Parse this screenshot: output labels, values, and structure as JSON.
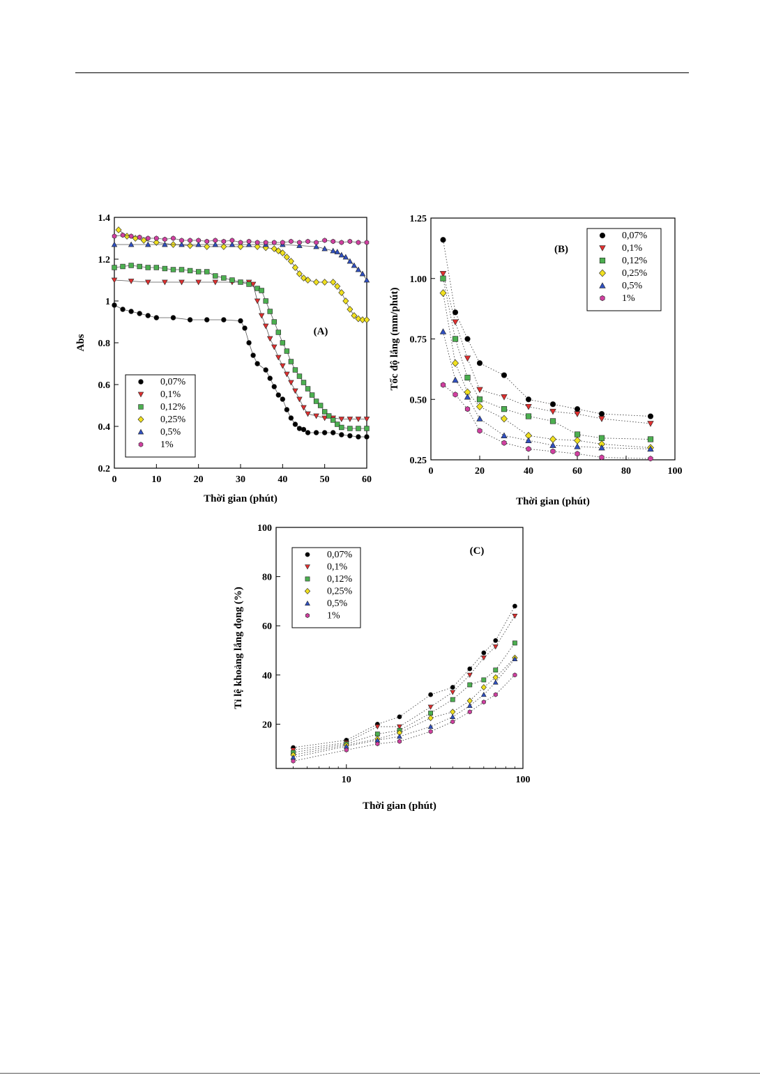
{
  "colors": {
    "s007": "#000000",
    "s01": "#e03030",
    "s012": "#4caf50",
    "s025": "#f0e020",
    "s05": "#3050c0",
    "s1": "#d040a0"
  },
  "chart_data": [
    {
      "type": "scatter",
      "panel_label": "(A)",
      "xlabel": "Thời gian (phút)",
      "ylabel": "Abs",
      "xlim": [
        0,
        60
      ],
      "ylim": [
        0.2,
        1.4
      ],
      "x_ticks": [
        0,
        10,
        20,
        30,
        40,
        50,
        60
      ],
      "y_ticks": [
        0.2,
        0.4,
        0.6,
        0.8,
        1.0,
        1.2,
        1.4
      ],
      "legend_position": "bottom-left",
      "grid": false,
      "series": [
        {
          "name": "0,07%",
          "marker": "circle",
          "color": "#000000",
          "points": [
            [
              0,
              0.98
            ],
            [
              2,
              0.96
            ],
            [
              4,
              0.95
            ],
            [
              6,
              0.94
            ],
            [
              8,
              0.93
            ],
            [
              10,
              0.92
            ],
            [
              14,
              0.92
            ],
            [
              18,
              0.91
            ],
            [
              22,
              0.91
            ],
            [
              26,
              0.91
            ],
            [
              30,
              0.905
            ],
            [
              31,
              0.87
            ],
            [
              32,
              0.8
            ],
            [
              33,
              0.74
            ],
            [
              34,
              0.7
            ],
            [
              36,
              0.67
            ],
            [
              37,
              0.63
            ],
            [
              38,
              0.59
            ],
            [
              39,
              0.55
            ],
            [
              40,
              0.53
            ],
            [
              41,
              0.48
            ],
            [
              42,
              0.44
            ],
            [
              43,
              0.41
            ],
            [
              44,
              0.39
            ],
            [
              45,
              0.385
            ],
            [
              46,
              0.37
            ],
            [
              48,
              0.37
            ],
            [
              50,
              0.37
            ],
            [
              52,
              0.37
            ],
            [
              54,
              0.36
            ],
            [
              56,
              0.355
            ],
            [
              58,
              0.35
            ],
            [
              60,
              0.35
            ]
          ]
        },
        {
          "name": "0,1%",
          "marker": "triangle-down",
          "color": "#e03030",
          "points": [
            [
              0,
              1.1
            ],
            [
              4,
              1.095
            ],
            [
              8,
              1.09
            ],
            [
              12,
              1.09
            ],
            [
              16,
              1.09
            ],
            [
              20,
              1.09
            ],
            [
              24,
              1.09
            ],
            [
              28,
              1.09
            ],
            [
              32,
              1.09
            ],
            [
              33,
              1.08
            ],
            [
              34,
              1.0
            ],
            [
              35,
              0.93
            ],
            [
              36,
              0.88
            ],
            [
              37,
              0.82
            ],
            [
              38,
              0.78
            ],
            [
              39,
              0.73
            ],
            [
              40,
              0.69
            ],
            [
              41,
              0.65
            ],
            [
              42,
              0.61
            ],
            [
              43,
              0.57
            ],
            [
              44,
              0.53
            ],
            [
              45,
              0.49
            ],
            [
              46,
              0.46
            ],
            [
              48,
              0.45
            ],
            [
              50,
              0.44
            ],
            [
              52,
              0.44
            ],
            [
              54,
              0.435
            ],
            [
              56,
              0.435
            ],
            [
              58,
              0.435
            ],
            [
              60,
              0.435
            ]
          ]
        },
        {
          "name": "0,12%",
          "marker": "square",
          "color": "#4caf50",
          "points": [
            [
              0,
              1.16
            ],
            [
              2,
              1.165
            ],
            [
              4,
              1.17
            ],
            [
              6,
              1.165
            ],
            [
              8,
              1.16
            ],
            [
              10,
              1.16
            ],
            [
              12,
              1.155
            ],
            [
              14,
              1.15
            ],
            [
              16,
              1.15
            ],
            [
              18,
              1.145
            ],
            [
              20,
              1.14
            ],
            [
              22,
              1.14
            ],
            [
              24,
              1.12
            ],
            [
              26,
              1.11
            ],
            [
              28,
              1.1
            ],
            [
              30,
              1.09
            ],
            [
              32,
              1.08
            ],
            [
              34,
              1.06
            ],
            [
              35,
              1.05
            ],
            [
              36,
              1.0
            ],
            [
              37,
              0.95
            ],
            [
              38,
              0.9
            ],
            [
              39,
              0.85
            ],
            [
              40,
              0.8
            ],
            [
              41,
              0.76
            ],
            [
              42,
              0.71
            ],
            [
              43,
              0.67
            ],
            [
              44,
              0.64
            ],
            [
              45,
              0.61
            ],
            [
              46,
              0.58
            ],
            [
              47,
              0.55
            ],
            [
              48,
              0.52
            ],
            [
              49,
              0.5
            ],
            [
              50,
              0.47
            ],
            [
              51,
              0.45
            ],
            [
              52,
              0.43
            ],
            [
              53,
              0.41
            ],
            [
              54,
              0.395
            ],
            [
              56,
              0.39
            ],
            [
              58,
              0.39
            ],
            [
              60,
              0.39
            ]
          ]
        },
        {
          "name": "0,25%",
          "marker": "diamond",
          "color": "#f0e020",
          "points": [
            [
              1,
              1.34
            ],
            [
              3,
              1.31
            ],
            [
              5,
              1.3
            ],
            [
              7,
              1.29
            ],
            [
              10,
              1.28
            ],
            [
              14,
              1.27
            ],
            [
              18,
              1.265
            ],
            [
              22,
              1.26
            ],
            [
              26,
              1.26
            ],
            [
              30,
              1.26
            ],
            [
              34,
              1.26
            ],
            [
              36,
              1.255
            ],
            [
              38,
              1.25
            ],
            [
              39,
              1.24
            ],
            [
              40,
              1.23
            ],
            [
              41,
              1.21
            ],
            [
              42,
              1.19
            ],
            [
              43,
              1.16
            ],
            [
              44,
              1.13
            ],
            [
              45,
              1.11
            ],
            [
              46,
              1.1
            ],
            [
              48,
              1.09
            ],
            [
              50,
              1.09
            ],
            [
              52,
              1.09
            ],
            [
              53,
              1.07
            ],
            [
              54,
              1.04
            ],
            [
              55,
              1.0
            ],
            [
              56,
              0.96
            ],
            [
              57,
              0.93
            ],
            [
              58,
              0.915
            ],
            [
              59,
              0.91
            ],
            [
              60,
              0.91
            ]
          ]
        },
        {
          "name": "0,5%",
          "marker": "triangle-up",
          "color": "#3050c0",
          "points": [
            [
              0,
              1.27
            ],
            [
              4,
              1.27
            ],
            [
              8,
              1.27
            ],
            [
              12,
              1.27
            ],
            [
              16,
              1.27
            ],
            [
              20,
              1.27
            ],
            [
              24,
              1.27
            ],
            [
              28,
              1.27
            ],
            [
              32,
              1.27
            ],
            [
              36,
              1.27
            ],
            [
              40,
              1.27
            ],
            [
              44,
              1.265
            ],
            [
              48,
              1.26
            ],
            [
              50,
              1.25
            ],
            [
              52,
              1.24
            ],
            [
              53,
              1.235
            ],
            [
              54,
              1.22
            ],
            [
              55,
              1.21
            ],
            [
              56,
              1.19
            ],
            [
              57,
              1.17
            ],
            [
              58,
              1.15
            ],
            [
              59,
              1.13
            ],
            [
              60,
              1.1
            ]
          ]
        },
        {
          "name": "1%",
          "marker": "hexagon",
          "color": "#d040a0",
          "points": [
            [
              0,
              1.31
            ],
            [
              2,
              1.315
            ],
            [
              4,
              1.31
            ],
            [
              6,
              1.305
            ],
            [
              8,
              1.3
            ],
            [
              10,
              1.3
            ],
            [
              12,
              1.295
            ],
            [
              14,
              1.3
            ],
            [
              16,
              1.29
            ],
            [
              18,
              1.29
            ],
            [
              20,
              1.29
            ],
            [
              22,
              1.285
            ],
            [
              24,
              1.29
            ],
            [
              26,
              1.285
            ],
            [
              28,
              1.29
            ],
            [
              30,
              1.28
            ],
            [
              32,
              1.285
            ],
            [
              34,
              1.28
            ],
            [
              36,
              1.28
            ],
            [
              38,
              1.28
            ],
            [
              40,
              1.28
            ],
            [
              42,
              1.285
            ],
            [
              44,
              1.28
            ],
            [
              46,
              1.285
            ],
            [
              48,
              1.28
            ],
            [
              50,
              1.29
            ],
            [
              52,
              1.285
            ],
            [
              54,
              1.28
            ],
            [
              56,
              1.285
            ],
            [
              58,
              1.28
            ],
            [
              60,
              1.28
            ]
          ]
        }
      ]
    },
    {
      "type": "line",
      "panel_label": "(B)",
      "xlabel": "Thời gian (phút)",
      "ylabel": "Tốc độ lắng (mm/phút)",
      "xlim": [
        0,
        100
      ],
      "ylim": [
        0.25,
        1.25
      ],
      "x_ticks": [
        0,
        20,
        40,
        60,
        80,
        100
      ],
      "y_ticks": [
        "0.25",
        "0.50",
        "0.75",
        "1.00",
        "1.25"
      ],
      "x": [
        5,
        10,
        15,
        20,
        30,
        40,
        50,
        60,
        70,
        90
      ],
      "legend_position": "top-right",
      "grid": false,
      "series": [
        {
          "name": "0,07%",
          "marker": "circle",
          "color": "#000000",
          "values": [
            1.16,
            0.86,
            0.75,
            0.65,
            0.6,
            0.5,
            0.48,
            0.46,
            0.44,
            0.43
          ]
        },
        {
          "name": "0,1%",
          "marker": "triangle-down",
          "color": "#e03030",
          "values": [
            1.02,
            0.82,
            0.67,
            0.54,
            0.51,
            0.47,
            0.45,
            0.44,
            0.42,
            0.4
          ]
        },
        {
          "name": "0,12%",
          "marker": "square",
          "color": "#4caf50",
          "values": [
            1.0,
            0.75,
            0.59,
            0.5,
            0.46,
            0.43,
            0.41,
            0.355,
            0.34,
            0.335
          ]
        },
        {
          "name": "0,25%",
          "marker": "diamond",
          "color": "#f0e020",
          "values": [
            0.94,
            0.65,
            0.53,
            0.47,
            0.42,
            0.35,
            0.335,
            0.33,
            0.315,
            0.3
          ]
        },
        {
          "name": "0,5%",
          "marker": "triangle-up",
          "color": "#3050c0",
          "values": [
            0.78,
            0.58,
            0.51,
            0.42,
            0.35,
            0.33,
            0.31,
            0.305,
            0.3,
            0.295
          ]
        },
        {
          "name": "1%",
          "marker": "hexagon",
          "color": "#d040a0",
          "values": [
            0.56,
            0.52,
            0.46,
            0.37,
            0.32,
            0.295,
            0.285,
            0.275,
            0.26,
            0.255
          ]
        }
      ]
    },
    {
      "type": "line",
      "panel_label": "(C)",
      "xlabel": "Thời gian (phút)",
      "ylabel": "Tỉ lệ khoảng lắng đọng (%)",
      "x_scale": "log",
      "xlim": [
        4,
        100
      ],
      "ylim": [
        2,
        100
      ],
      "x_ticks": [
        10,
        100
      ],
      "y_ticks": [
        20,
        40,
        60,
        80,
        100
      ],
      "x": [
        5,
        10,
        15,
        20,
        30,
        40,
        50,
        60,
        70,
        90
      ],
      "legend_position": "top-left",
      "grid": false,
      "series": [
        {
          "name": "0,07%",
          "marker": "circle",
          "color": "#000000",
          "values": [
            10.5,
            13.5,
            20,
            23,
            32,
            35,
            42.5,
            49,
            54,
            68
          ]
        },
        {
          "name": "0,1%",
          "marker": "triangle-down",
          "color": "#e03030",
          "values": [
            9.5,
            12.5,
            19,
            19,
            27,
            33,
            40,
            47,
            51.5,
            64
          ]
        },
        {
          "name": "0,12%",
          "marker": "square",
          "color": "#4caf50",
          "values": [
            8.5,
            12,
            16,
            17.5,
            24.5,
            30,
            36,
            38,
            42,
            53
          ]
        },
        {
          "name": "0,25%",
          "marker": "diamond",
          "color": "#f0e020",
          "values": [
            7.5,
            11.5,
            14,
            16.5,
            22.5,
            25,
            29.5,
            35,
            39,
            47
          ]
        },
        {
          "name": "0,5%",
          "marker": "triangle-up",
          "color": "#3050c0",
          "values": [
            6.5,
            11,
            13.5,
            15,
            19,
            23,
            27.5,
            32,
            37,
            46.5
          ]
        },
        {
          "name": "1%",
          "marker": "hexagon",
          "color": "#d040a0",
          "values": [
            5,
            9.5,
            12,
            13,
            17,
            21,
            25,
            29,
            32,
            40
          ]
        }
      ]
    }
  ]
}
